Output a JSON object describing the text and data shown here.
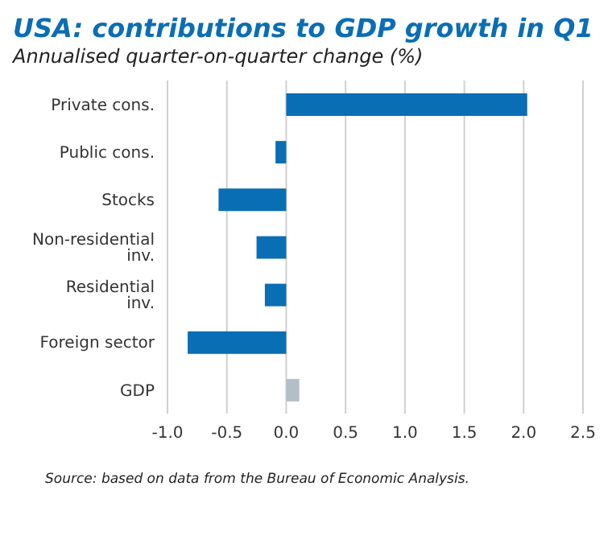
{
  "chart_data": {
    "type": "bar",
    "orientation": "horizontal",
    "title": "USA: contributions to GDP growth in Q1",
    "subtitle": "Annualised quarter-on-quarter change (%)",
    "categories": [
      "Private cons.",
      "Public cons.",
      "Stocks",
      "Non-residential inv.",
      "Residential inv.",
      "Foreign sector",
      "GDP"
    ],
    "values": [
      2.03,
      -0.09,
      -0.57,
      -0.25,
      -0.18,
      -0.83,
      0.11
    ],
    "colors": [
      "#0a6eb4",
      "#0a6eb4",
      "#0a6eb4",
      "#0a6eb4",
      "#0a6eb4",
      "#0a6eb4",
      "#b4bec6"
    ],
    "xlim": [
      -1.0,
      2.5
    ],
    "xticks": [
      {
        "value": -1,
        "label": "-1.0"
      },
      {
        "value": -0.5,
        "label": "-0.5"
      },
      {
        "value": 0,
        "label": "0.0"
      },
      {
        "value": 0.5,
        "label": "0.5"
      },
      {
        "value": 1,
        "label": "1.0"
      },
      {
        "value": 1.5,
        "label": "1.5"
      },
      {
        "value": 2,
        "label": "2.0"
      },
      {
        "value": 2.5,
        "label": "2.5"
      }
    ],
    "grid": "x",
    "annotations": [
      "Source: based on data from the Bureau of Economic Analysis."
    ]
  }
}
